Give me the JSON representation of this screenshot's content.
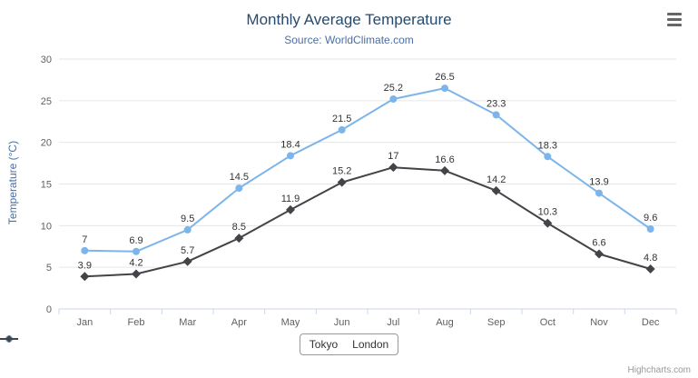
{
  "chart_data": {
    "type": "line",
    "title": "Monthly Average Temperature",
    "subtitle": "Source: WorldClimate.com",
    "categories": [
      "Jan",
      "Feb",
      "Mar",
      "Apr",
      "May",
      "Jun",
      "Jul",
      "Aug",
      "Sep",
      "Oct",
      "Nov",
      "Dec"
    ],
    "series": [
      {
        "name": "Tokyo",
        "color": "#7cb5ec",
        "marker": "circle",
        "values": [
          7,
          6.9,
          9.5,
          14.5,
          18.4,
          21.5,
          25.2,
          26.5,
          23.3,
          18.3,
          13.9,
          9.6
        ]
      },
      {
        "name": "London",
        "color": "#434348",
        "marker": "diamond",
        "values": [
          3.9,
          4.2,
          5.7,
          8.5,
          11.9,
          15.2,
          17,
          16.6,
          14.2,
          10.3,
          6.6,
          4.8
        ]
      }
    ],
    "xlabel": "",
    "ylabel": "Temperature (°C)",
    "ylim": [
      0,
      30
    ],
    "ytick_step": 5,
    "grid": true,
    "legend_position": "bottom"
  },
  "credits": {
    "label": "Highcharts.com"
  },
  "colors": {
    "grid": "#e6e6e6",
    "axis_line": "#ccd6eb",
    "axis_label": "#606060",
    "data_label": "#333333"
  }
}
